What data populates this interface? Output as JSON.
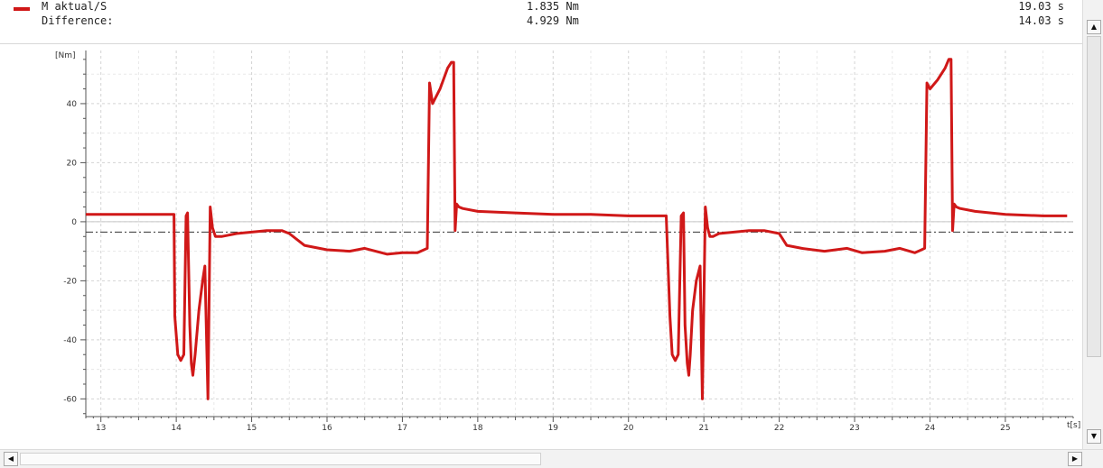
{
  "legend": {
    "series_label": "M aktual/S",
    "series_value": "1.835 Nm",
    "series_time": "19.03 s",
    "diff_label": "Difference:",
    "diff_value": "4.929 Nm",
    "diff_time": "14.03 s",
    "series_color": "#d01818"
  },
  "chart_data": {
    "type": "line",
    "ylabel": "[Nm]",
    "xlabel": "t[s]",
    "xlim": [
      12.8,
      25.9
    ],
    "ylim": [
      -66,
      58
    ],
    "yticks": [
      40,
      20,
      0,
      -20,
      -40,
      -60
    ],
    "xticks": [
      13,
      14,
      15,
      16,
      17,
      18,
      19,
      20,
      21,
      22,
      23,
      24,
      25
    ],
    "cursor_level": -3.5,
    "grid": true,
    "series": [
      {
        "color": "#d01818",
        "x": [
          12.8,
          13.97,
          13.98,
          14.02,
          14.06,
          14.1,
          14.13,
          14.15,
          14.18,
          14.2,
          14.22,
          14.25,
          14.3,
          14.35,
          14.38,
          14.42,
          14.45,
          14.48,
          14.52,
          14.6,
          14.8,
          15.0,
          15.2,
          15.4,
          15.5,
          15.7,
          16.0,
          16.3,
          16.5,
          16.8,
          17.0,
          17.2,
          17.33,
          17.36,
          17.4,
          17.5,
          17.6,
          17.65,
          17.68,
          17.7,
          17.72,
          17.75,
          17.8,
          18.0,
          18.5,
          19.0,
          19.5,
          20.0,
          20.5,
          20.55,
          20.58,
          20.62,
          20.66,
          20.7,
          20.73,
          20.75,
          20.78,
          20.8,
          20.82,
          20.85,
          20.9,
          20.95,
          20.98,
          21.02,
          21.05,
          21.08,
          21.12,
          21.2,
          21.4,
          21.6,
          21.8,
          22.0,
          22.1,
          22.3,
          22.6,
          22.9,
          23.1,
          23.4,
          23.6,
          23.8,
          23.93,
          23.96,
          24.0,
          24.1,
          24.2,
          24.25,
          24.28,
          24.3,
          24.32,
          24.35,
          24.4,
          24.6,
          25.0,
          25.5,
          25.82
        ],
        "y": [
          2.5,
          2.5,
          -32,
          -45,
          -47,
          -45,
          2,
          3,
          -35,
          -48,
          -52,
          -45,
          -30,
          -20,
          -15,
          -60,
          5,
          -2,
          -5,
          -5,
          -4,
          -3.5,
          -3,
          -3,
          -4,
          -8,
          -9.5,
          -10,
          -9,
          -11,
          -10.5,
          -10.5,
          -9,
          47,
          40,
          45,
          52,
          54,
          54,
          -3,
          6,
          5,
          4.5,
          3.5,
          3,
          2.5,
          2.5,
          2,
          2,
          -32,
          -45,
          -47,
          -45,
          2,
          3,
          -35,
          -48,
          -52,
          -45,
          -30,
          -20,
          -15,
          -60,
          5,
          -2,
          -5,
          -5,
          -4,
          -3.5,
          -3,
          -3,
          -4,
          -8,
          -9,
          -10,
          -9,
          -10.5,
          -10,
          -9,
          -10.5,
          -9,
          47,
          45,
          48,
          52,
          55,
          55,
          -3,
          6,
          5,
          4.5,
          3.5,
          2.5,
          2,
          2
        ]
      }
    ]
  }
}
